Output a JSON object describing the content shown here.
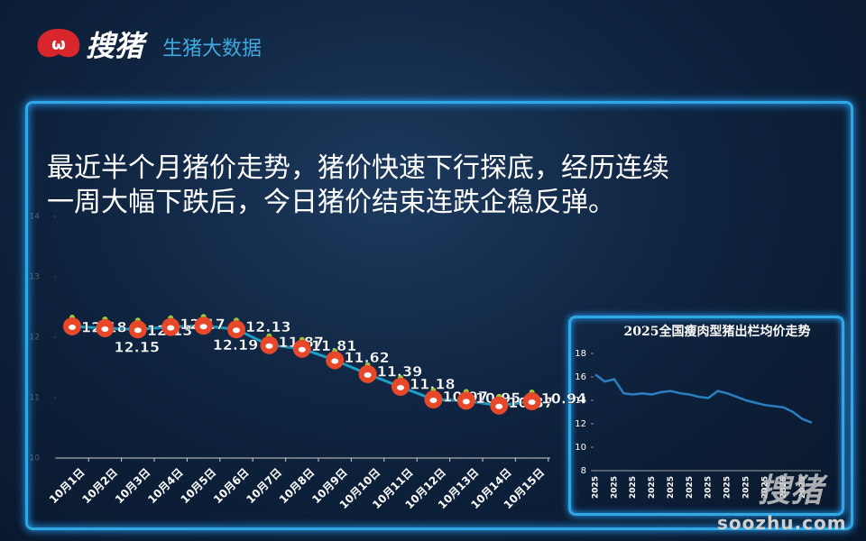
{
  "header": {
    "brand": "搜猪",
    "subtitle": "生猪大数据"
  },
  "headline": [
    "最近半个月猪价走势，猪价快速下行探底，经历连续",
    "一周大幅下跌后，今日猪价结束连跌企稳反弹。"
  ],
  "chart_data": [
    {
      "type": "line",
      "categories": [
        "10月1日",
        "10月2日",
        "10月3日",
        "10月4日",
        "10月5日",
        "10月6日",
        "10月7日",
        "10月8日",
        "10月9日",
        "10月10日",
        "10月11日",
        "10月12日",
        "10月13日",
        "10月14日",
        "10月15日"
      ],
      "values": [
        12.18,
        12.15,
        12.13,
        12.17,
        12.19,
        12.13,
        11.87,
        11.81,
        11.62,
        11.39,
        11.18,
        10.97,
        10.95,
        10.87,
        10.94
      ],
      "color": "#1aa0c8",
      "marker_color": "#e8482a",
      "ylim": [
        10,
        14
      ],
      "yticks": [
        10,
        11,
        12,
        13,
        14
      ]
    },
    {
      "type": "line",
      "title": "2025全国瘦肉型猪出栏均价走势",
      "categories": [
        "2025",
        null,
        "2025",
        null,
        "2025",
        null,
        "2025",
        null,
        "2025",
        null,
        "2025",
        null,
        "2025",
        null,
        "2025",
        null,
        "2025",
        null,
        "2025",
        null,
        "2025",
        null,
        "2025",
        null
      ],
      "values": [
        16.2,
        15.6,
        15.8,
        14.6,
        14.5,
        14.6,
        14.5,
        14.7,
        14.8,
        14.6,
        14.5,
        14.3,
        14.2,
        14.8,
        14.6,
        14.3,
        14.0,
        13.8,
        13.6,
        13.5,
        13.4,
        13.0,
        12.4,
        12.1
      ],
      "color": "#2a7fc0",
      "ylim": [
        8,
        18
      ],
      "yticks": [
        8,
        10,
        12,
        14,
        16,
        18
      ]
    }
  ],
  "watermark": {
    "brand": "搜猪",
    "url": "soozhu.com"
  }
}
